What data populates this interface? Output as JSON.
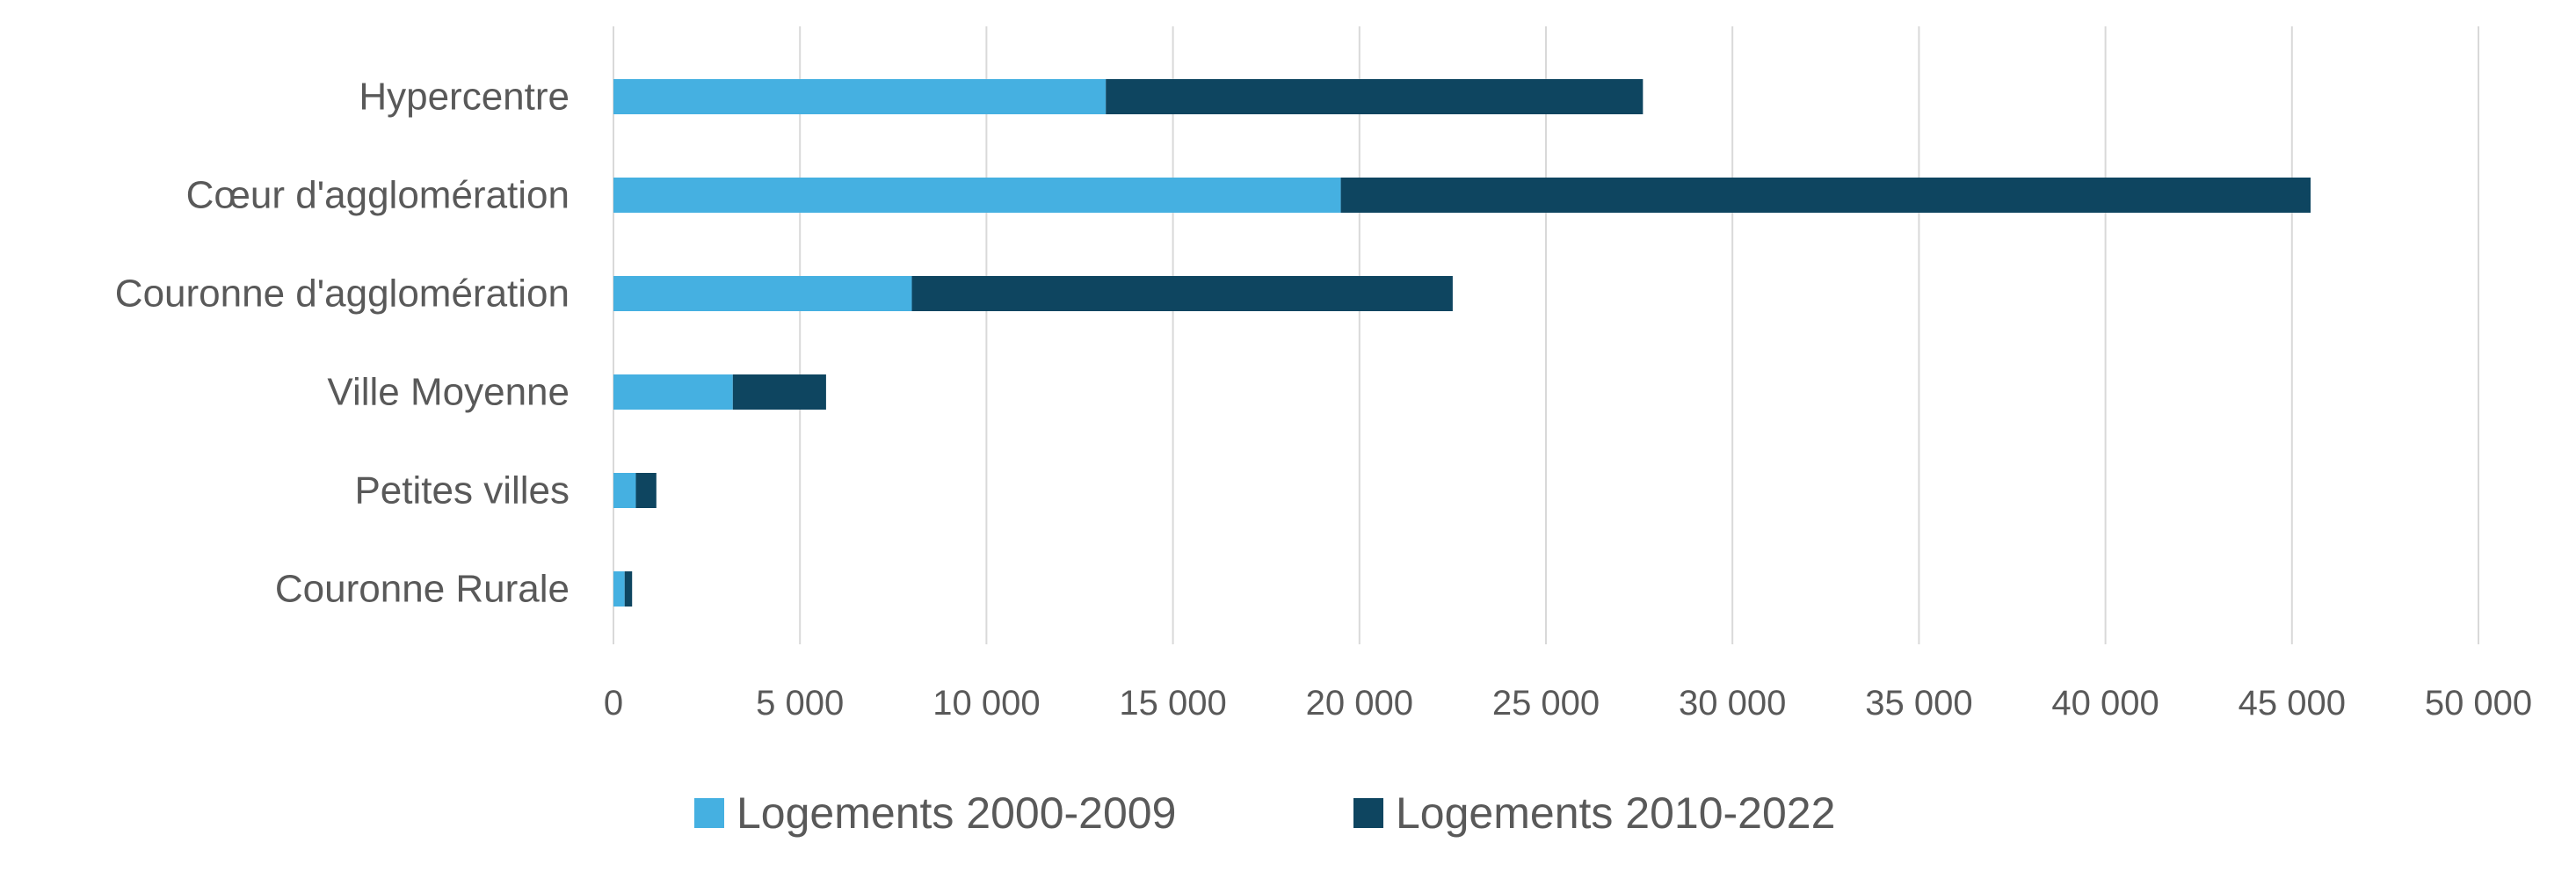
{
  "chart_data": {
    "type": "bar",
    "orientation": "horizontal",
    "stacked": true,
    "categories": [
      "Hypercentre",
      "Cœur d'agglomération",
      "Couronne d'agglomération",
      "Ville Moyenne",
      "Petites villes",
      "Couronne Rurale"
    ],
    "series": [
      {
        "name": "Logements 2000-2009",
        "color": "#45b0e1",
        "values": [
          13200,
          19500,
          8000,
          3200,
          600,
          300
        ]
      },
      {
        "name": "Logements 2010-2022",
        "color": "#0e4560",
        "values": [
          14400,
          26000,
          14500,
          2500,
          550,
          200
        ]
      }
    ],
    "xlim": [
      0,
      50000
    ],
    "xticks": [
      0,
      5000,
      10000,
      15000,
      20000,
      25000,
      30000,
      35000,
      40000,
      45000,
      50000
    ],
    "xtick_labels": [
      "0",
      "5 000",
      "10 000",
      "15 000",
      "20 000",
      "25 000",
      "30 000",
      "35 000",
      "40 000",
      "45 000",
      "50 000"
    ],
    "title": "",
    "xlabel": "",
    "ylabel": "",
    "grid": "vertical",
    "legend_position": "bottom"
  }
}
